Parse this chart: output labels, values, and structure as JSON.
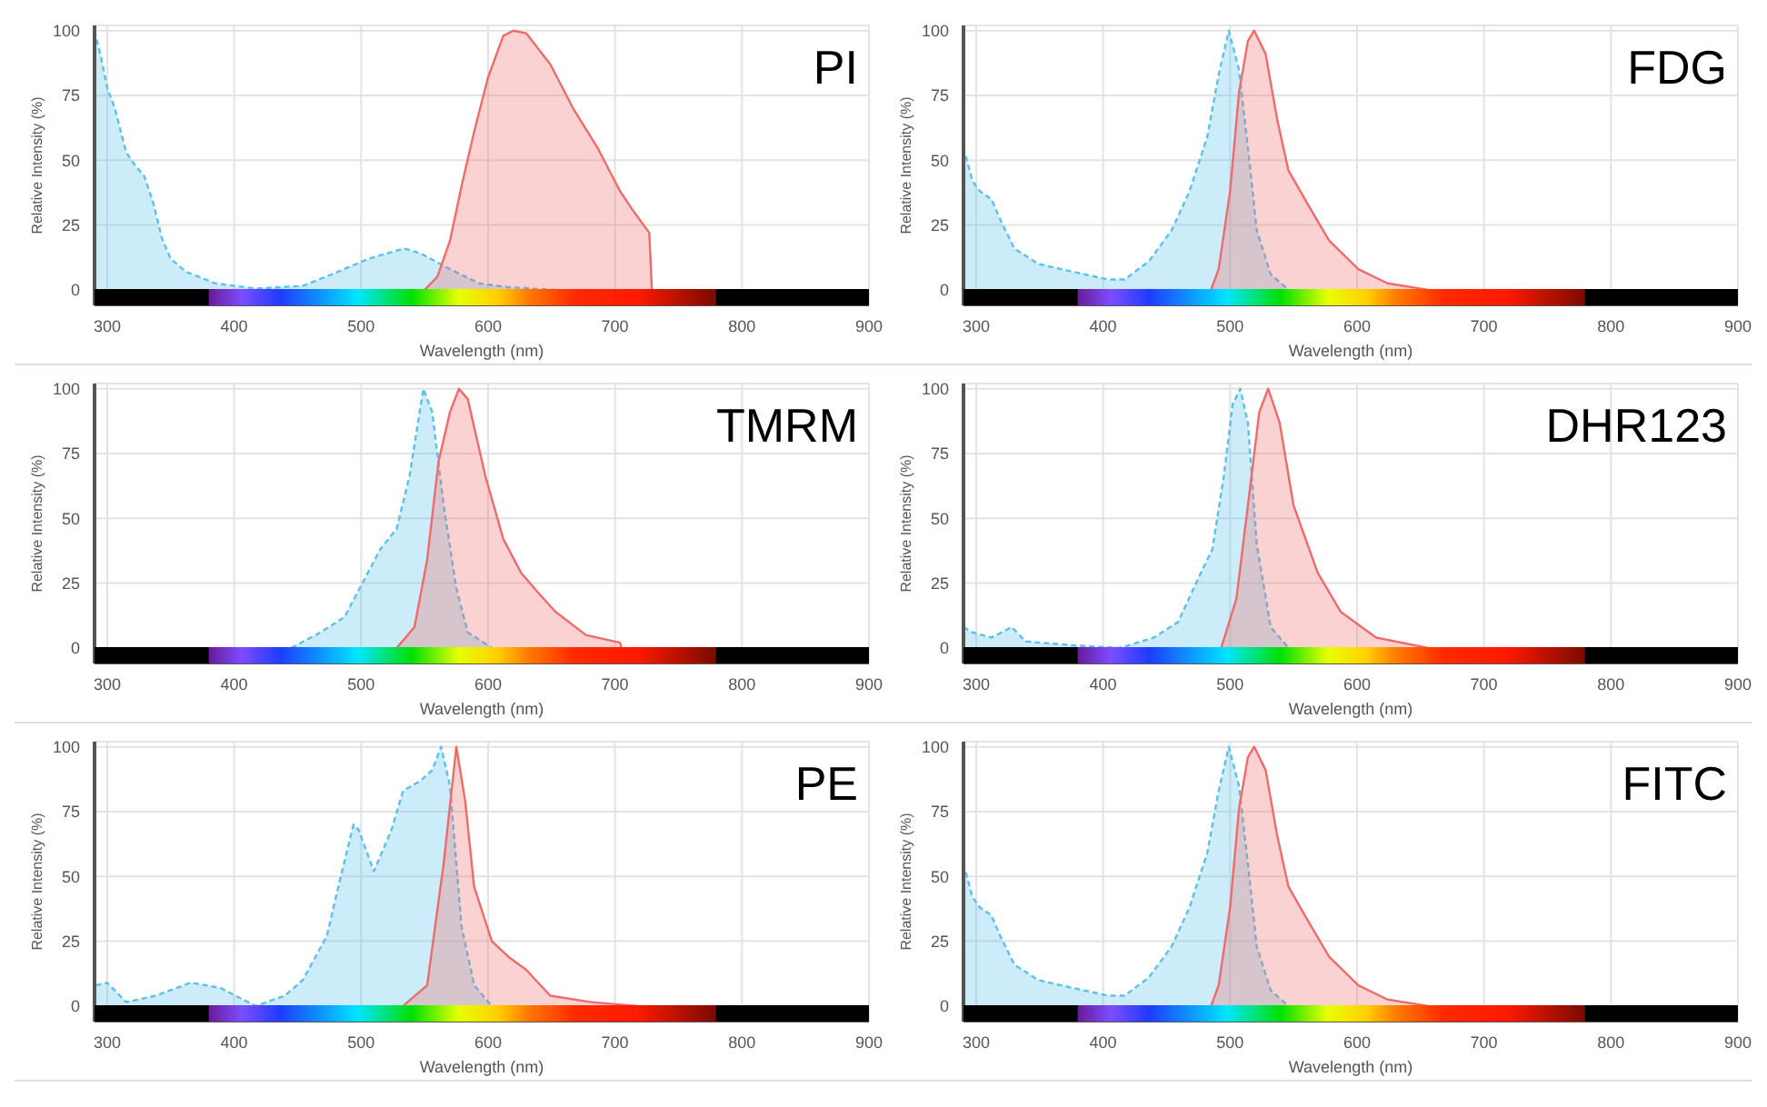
{
  "chart_data": [
    {
      "type": "area",
      "title": "PI",
      "xlabel": "Wavelength (nm)",
      "ylabel": "Relative Intensity (%)",
      "xlim": [
        290,
        900
      ],
      "ylim": [
        -6,
        102
      ],
      "xticks": [
        300,
        400,
        500,
        600,
        700,
        800,
        900
      ],
      "yticks": [
        0,
        25,
        50,
        75,
        100
      ],
      "grid": true,
      "legend": false,
      "series": [
        {
          "color": "#5bc0eb",
          "line_style": "dashed",
          "x": [
            290,
            295,
            300,
            306,
            315,
            322,
            329,
            336,
            343,
            350,
            362,
            385,
            417,
            454,
            477,
            506,
            534,
            547,
            570,
            593,
            616,
            653
          ],
          "values": [
            100,
            90,
            78,
            70,
            53,
            48,
            44,
            34,
            20,
            12,
            7,
            2.5,
            0.5,
            1.5,
            6,
            12,
            16,
            14,
            8,
            2.5,
            1,
            0
          ]
        },
        {
          "color": "#ee6b6b",
          "line_style": "solid",
          "x": [
            550,
            560,
            570,
            580,
            589,
            600,
            612,
            620,
            630,
            649,
            667,
            686,
            704,
            715,
            727,
            729
          ],
          "values": [
            0,
            5,
            19,
            42,
            61,
            82,
            98,
            100,
            99,
            87,
            70,
            55,
            38,
            30,
            22,
            0
          ]
        }
      ]
    },
    {
      "type": "area",
      "title": "FDG",
      "xlabel": "Wavelength (nm)",
      "ylabel": "Relative Intensity (%)",
      "xlim": [
        290,
        900
      ],
      "ylim": [
        -6,
        102
      ],
      "xticks": [
        300,
        400,
        500,
        600,
        700,
        800,
        900
      ],
      "yticks": [
        0,
        25,
        50,
        75,
        100
      ],
      "grid": true,
      "legend": false,
      "series": [
        {
          "color": "#5bc0eb",
          "line_style": "dashed",
          "x": [
            290,
            297,
            303,
            312,
            319,
            330,
            349,
            367,
            385,
            404,
            417,
            436,
            454,
            468,
            482,
            491,
            499,
            507,
            514,
            521,
            532,
            546
          ],
          "values": [
            55,
            42,
            38,
            35,
            27,
            16,
            10,
            8,
            6,
            4,
            4,
            11,
            23,
            38,
            59,
            83,
            100,
            85,
            55,
            23,
            6,
            0
          ]
        },
        {
          "color": "#ee6b6b",
          "line_style": "solid",
          "x": [
            485,
            491,
            500,
            507,
            514,
            519,
            528,
            537,
            546,
            560,
            578,
            601,
            624,
            656
          ],
          "values": [
            0,
            8,
            38,
            76,
            96,
            100,
            91,
            66,
            46,
            34,
            19,
            8,
            2.5,
            0
          ]
        }
      ]
    },
    {
      "type": "area",
      "title": "TMRM",
      "xlabel": "Wavelength (nm)",
      "ylabel": "Relative Intensity (%)",
      "xlim": [
        290,
        900
      ],
      "ylim": [
        -6,
        102
      ],
      "xticks": [
        300,
        400,
        500,
        600,
        700,
        800,
        900
      ],
      "yticks": [
        0,
        25,
        50,
        75,
        100
      ],
      "grid": true,
      "legend": false,
      "series": [
        {
          "color": "#5bc0eb",
          "line_style": "dashed",
          "x": [
            445,
            468,
            487,
            501,
            515,
            528,
            538,
            549,
            556,
            565,
            575,
            584,
            603
          ],
          "values": [
            0,
            6,
            12,
            25,
            38,
            46,
            66,
            100,
            91,
            55,
            23,
            6,
            0
          ]
        },
        {
          "color": "#ee6b6b",
          "line_style": "solid",
          "x": [
            528,
            542,
            552,
            561,
            570,
            577,
            584,
            598,
            612,
            626,
            640,
            653,
            677,
            704,
            705
          ],
          "values": [
            0,
            8,
            34,
            72,
            91,
            100,
            96,
            66,
            42,
            29,
            21,
            14,
            5,
            2,
            0
          ]
        }
      ]
    },
    {
      "type": "area",
      "title": "DHR123",
      "xlabel": "Wavelength (nm)",
      "ylabel": "Relative Intensity (%)",
      "xlim": [
        290,
        900
      ],
      "ylim": [
        -6,
        102
      ],
      "xticks": [
        300,
        400,
        500,
        600,
        700,
        800,
        900
      ],
      "yticks": [
        0,
        25,
        50,
        75,
        100
      ],
      "grid": true,
      "legend": false,
      "series": [
        {
          "color": "#5bc0eb",
          "line_style": "dashed",
          "x": [
            290,
            297,
            312,
            328,
            339,
            376,
            413,
            440,
            459,
            477,
            486,
            495,
            502,
            508,
            514,
            521,
            532,
            546
          ],
          "values": [
            8,
            6,
            4,
            8,
            2.5,
            1,
            0,
            4,
            10,
            29,
            38,
            66,
            94,
            100,
            87,
            40,
            8,
            0
          ]
        },
        {
          "color": "#ee6b6b",
          "line_style": "solid",
          "x": [
            493,
            505,
            514,
            523,
            530,
            539,
            550,
            569,
            587,
            615,
            656
          ],
          "values": [
            0,
            19,
            55,
            91,
            100,
            87,
            55,
            29,
            14,
            4,
            0
          ]
        }
      ]
    },
    {
      "type": "area",
      "title": "PE",
      "xlabel": "Wavelength (nm)",
      "ylabel": "Relative Intensity (%)",
      "xlim": [
        290,
        900
      ],
      "ylim": [
        -6,
        102
      ],
      "xticks": [
        300,
        400,
        500,
        600,
        700,
        800,
        900
      ],
      "yticks": [
        0,
        25,
        50,
        75,
        100
      ],
      "grid": true,
      "legend": false,
      "series": [
        {
          "color": "#5bc0eb",
          "line_style": "dashed",
          "x": [
            291,
            300,
            315,
            338,
            366,
            389,
            417,
            440,
            454,
            473,
            482,
            494,
            498,
            510,
            524,
            533,
            547,
            556,
            563,
            570,
            579,
            589,
            603
          ],
          "values": [
            8,
            9,
            1.5,
            4,
            9,
            7,
            0,
            4,
            10,
            27,
            46,
            70,
            68,
            52,
            68,
            83,
            87,
            91,
            100,
            85,
            31,
            8,
            0
          ]
        },
        {
          "color": "#ee6b6b",
          "line_style": "solid",
          "x": [
            533,
            552,
            565,
            575,
            582,
            589,
            603,
            616,
            630,
            649,
            681,
            718
          ],
          "values": [
            0,
            8,
            55,
            100,
            79,
            46,
            25,
            19,
            14,
            4,
            1.5,
            0
          ]
        }
      ]
    },
    {
      "type": "area",
      "title": "FITC",
      "xlabel": "Wavelength (nm)",
      "ylabel": "Relative Intensity (%)",
      "xlim": [
        290,
        900
      ],
      "ylim": [
        -6,
        102
      ],
      "xticks": [
        300,
        400,
        500,
        600,
        700,
        800,
        900
      ],
      "yticks": [
        0,
        25,
        50,
        75,
        100
      ],
      "grid": true,
      "legend": false,
      "series": [
        {
          "color": "#5bc0eb",
          "line_style": "dashed",
          "x": [
            290,
            297,
            303,
            312,
            319,
            330,
            349,
            367,
            385,
            404,
            417,
            436,
            454,
            468,
            482,
            491,
            499,
            507,
            514,
            521,
            532,
            546
          ],
          "values": [
            55,
            42,
            38,
            35,
            27,
            16,
            10,
            8,
            6,
            4,
            4,
            11,
            23,
            38,
            59,
            83,
            100,
            85,
            55,
            23,
            6,
            0
          ]
        },
        {
          "color": "#ee6b6b",
          "line_style": "solid",
          "x": [
            485,
            491,
            500,
            507,
            514,
            519,
            528,
            537,
            546,
            560,
            578,
            601,
            624,
            656
          ],
          "values": [
            0,
            8,
            38,
            76,
            96,
            100,
            91,
            66,
            46,
            34,
            19,
            8,
            2.5,
            0
          ]
        }
      ]
    }
  ]
}
